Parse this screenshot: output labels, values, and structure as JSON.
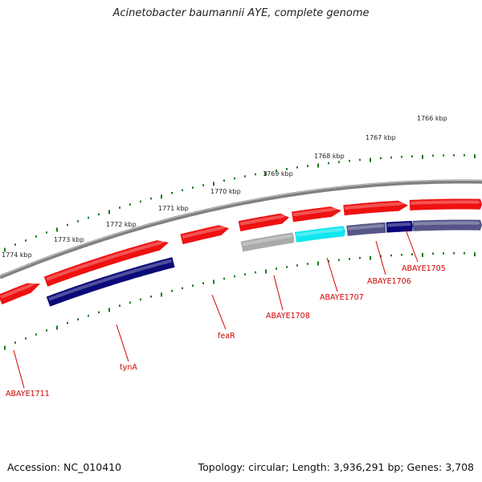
{
  "title": "Acinetobacter baumannii AYE, complete genome",
  "footer": {
    "accession": "Accession: NC_010410",
    "topology": "Topology: circular; Length: 3,936,291 bp; Genes: 3,708"
  },
  "colors": {
    "backbone": "#808080",
    "forward_gene": "#ee1111",
    "reverse_gene_navy": "#0a0a78",
    "reverse_gene_grey": "#aaaaaa",
    "reverse_gene_cyan": "#11e6ee",
    "reverse_gene_slate": "#555588",
    "scale_ticks": "#1a7a1a",
    "gene_label": "#d00000"
  },
  "scale_labels": [
    "1766 kbp",
    "1767 kbp",
    "1768 kbp",
    "1769 kbp",
    "1770 kbp",
    "1771 kbp",
    "1772 kbp",
    "1773 kbp",
    "1774 kbp"
  ],
  "gene_labels": [
    "ABAYE1705",
    "ABAYE1706",
    "ABAYE1707",
    "ABAYE1708",
    "feaR",
    "tynA",
    "ABAYE1711"
  ]
}
